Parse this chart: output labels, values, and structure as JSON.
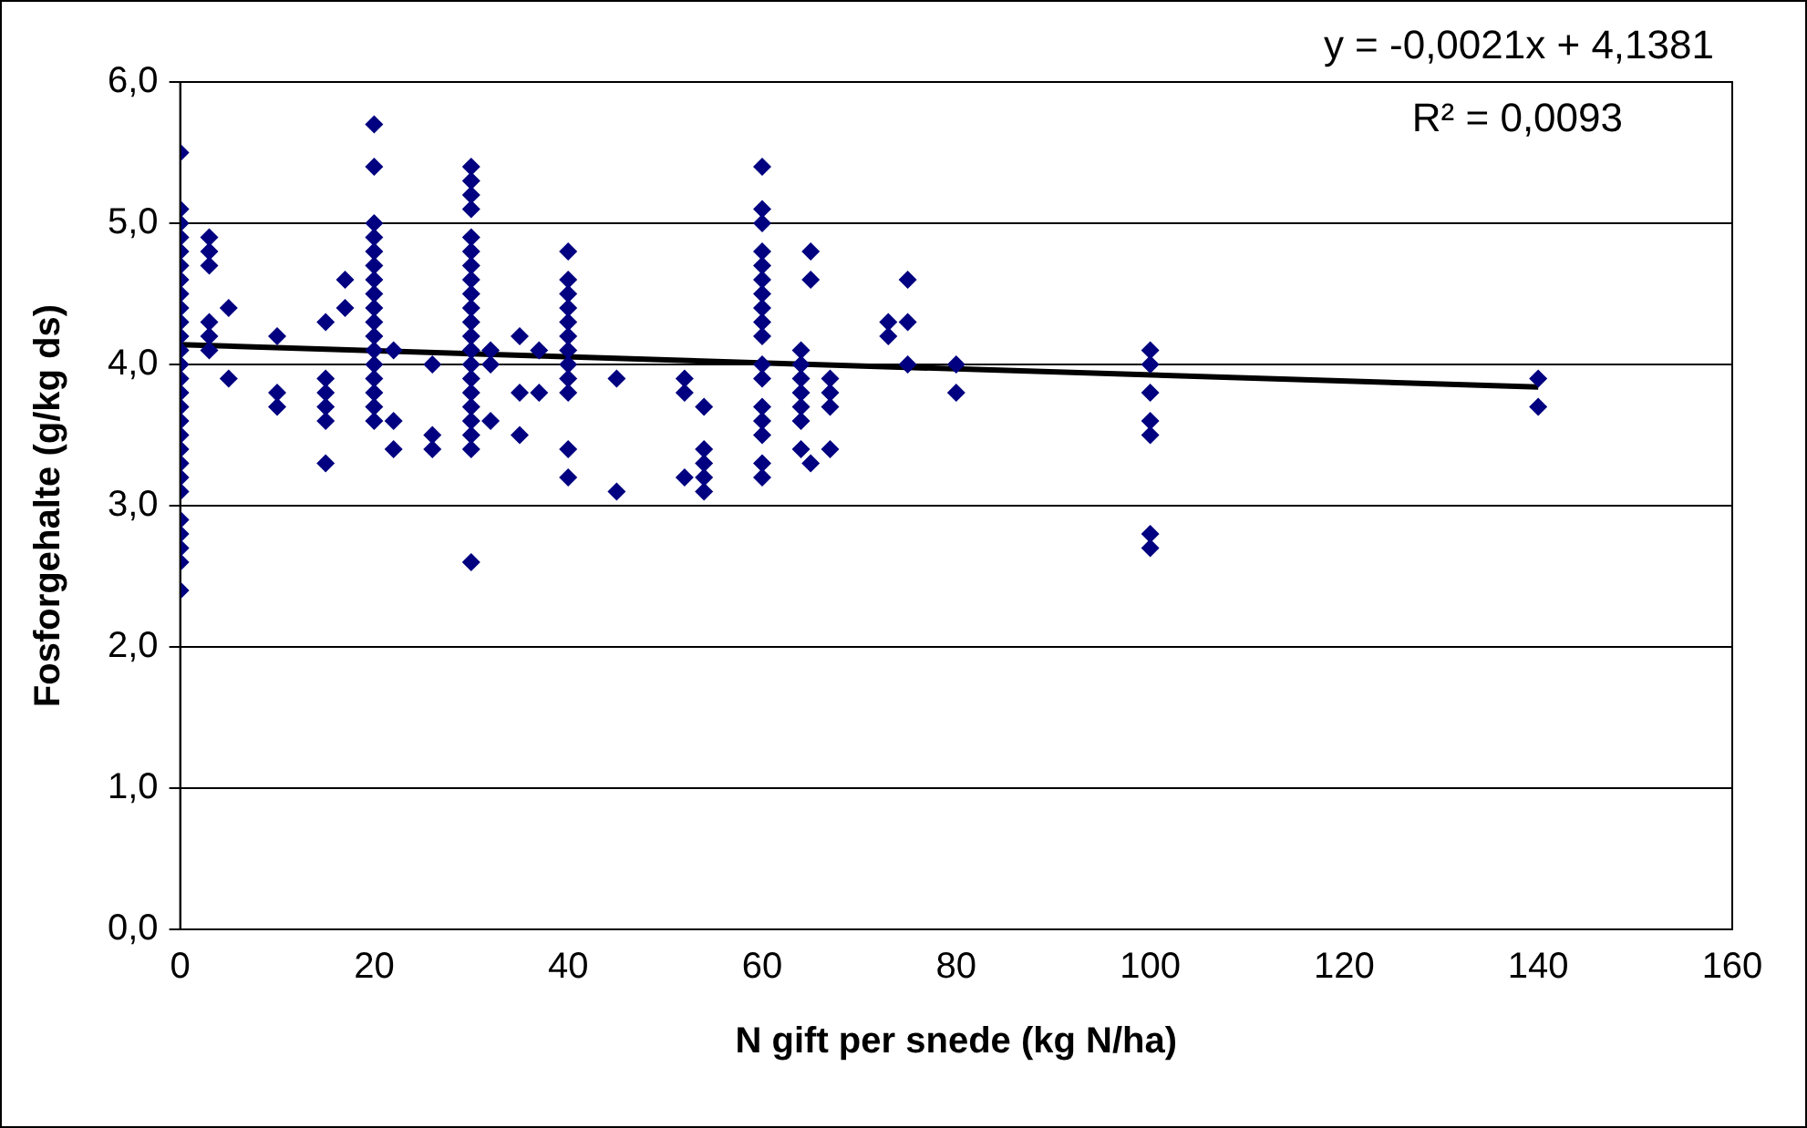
{
  "chart_data": {
    "type": "scatter",
    "xlabel": "N gift per snede (kg N/ha)",
    "ylabel": "Fosforgehalte (g/kg ds)",
    "annotations": [
      "y = -0,0021x + 4,1381",
      "R² = 0,0093"
    ],
    "xlim": [
      0,
      160
    ],
    "xticks": [
      0,
      20,
      40,
      60,
      80,
      100,
      120,
      140,
      160
    ],
    "ylim": [
      0,
      6
    ],
    "yticks": [
      {
        "value": 0,
        "label": "0,0"
      },
      {
        "value": 1,
        "label": "1,0"
      },
      {
        "value": 2,
        "label": "2,0"
      },
      {
        "value": 3,
        "label": "3,0"
      },
      {
        "value": 4,
        "label": "4,0"
      },
      {
        "value": 5,
        "label": "5,0"
      },
      {
        "value": 6,
        "label": "6,0"
      }
    ],
    "grid": "y",
    "legend": false,
    "marker": "diamond",
    "series": [
      {
        "color": "#000080",
        "x": [
          0,
          0,
          0,
          0,
          0,
          0,
          0,
          0,
          0,
          0,
          0,
          0,
          0,
          0,
          0,
          0,
          0,
          0,
          0,
          0,
          0,
          0,
          0,
          0,
          0,
          0,
          0,
          3,
          3,
          3,
          3,
          3,
          3,
          5,
          5,
          10,
          10,
          10,
          15,
          15,
          15,
          15,
          15,
          15,
          17,
          17,
          20,
          20,
          20,
          20,
          20,
          20,
          20,
          20,
          20,
          20,
          20,
          20,
          20,
          20,
          20,
          20,
          20,
          22,
          22,
          22,
          26,
          26,
          26,
          30,
          30,
          30,
          30,
          30,
          30,
          30,
          30,
          30,
          30,
          30,
          30,
          30,
          30,
          30,
          30,
          30,
          30,
          30,
          30,
          30,
          32,
          32,
          32,
          35,
          35,
          35,
          37,
          37,
          40,
          40,
          40,
          40,
          40,
          40,
          40,
          40,
          40,
          40,
          40,
          40,
          45,
          45,
          52,
          52,
          52,
          54,
          54,
          54,
          54,
          54,
          60,
          60,
          60,
          60,
          60,
          60,
          60,
          60,
          60,
          60,
          60,
          60,
          60,
          60,
          60,
          60,
          60,
          64,
          64,
          64,
          64,
          64,
          64,
          64,
          65,
          65,
          65,
          67,
          67,
          67,
          67,
          73,
          73,
          75,
          75,
          75,
          80,
          80,
          100,
          100,
          100,
          100,
          100,
          100,
          100,
          140,
          140
        ],
        "values": [
          2.4,
          2.6,
          2.7,
          2.8,
          2.9,
          3.1,
          3.2,
          3.3,
          3.4,
          3.5,
          3.6,
          3.7,
          3.8,
          3.9,
          4.0,
          4.1,
          4.2,
          4.3,
          4.4,
          4.5,
          4.6,
          4.7,
          4.8,
          4.9,
          5.0,
          5.1,
          5.5,
          4.9,
          4.8,
          4.7,
          4.3,
          4.2,
          4.1,
          4.4,
          3.9,
          4.2,
          3.8,
          3.7,
          4.3,
          3.9,
          3.8,
          3.7,
          3.6,
          3.3,
          4.6,
          4.4,
          5.7,
          5.4,
          5.0,
          4.9,
          4.8,
          4.7,
          4.6,
          4.5,
          4.4,
          4.3,
          4.2,
          4.1,
          4.0,
          3.9,
          3.8,
          3.7,
          3.6,
          4.1,
          3.6,
          3.4,
          4.0,
          3.5,
          3.4,
          5.4,
          5.3,
          5.2,
          5.1,
          4.9,
          4.8,
          4.7,
          4.6,
          4.5,
          4.4,
          4.3,
          4.2,
          4.1,
          4.0,
          3.9,
          3.8,
          3.7,
          3.6,
          3.5,
          3.4,
          2.6,
          4.1,
          4.0,
          3.6,
          4.2,
          3.8,
          3.5,
          4.1,
          3.8,
          4.8,
          4.6,
          4.5,
          4.4,
          4.3,
          4.2,
          4.1,
          4.0,
          3.9,
          3.8,
          3.4,
          3.2,
          3.9,
          3.1,
          3.9,
          3.8,
          3.2,
          3.7,
          3.4,
          3.3,
          3.2,
          3.1,
          5.4,
          5.1,
          5.0,
          4.8,
          4.7,
          4.6,
          4.5,
          4.4,
          4.3,
          4.2,
          3.9,
          3.7,
          3.6,
          3.5,
          3.3,
          3.2,
          4.0,
          4.1,
          4.0,
          3.9,
          3.8,
          3.7,
          3.6,
          3.4,
          4.8,
          4.6,
          3.3,
          3.9,
          3.8,
          3.7,
          3.4,
          4.3,
          4.2,
          4.6,
          4.3,
          4.0,
          4.0,
          3.8,
          4.1,
          4.0,
          3.8,
          3.6,
          3.5,
          2.8,
          2.7,
          3.9,
          3.7
        ]
      },
      {
        "type": "line",
        "color": "#000000",
        "marker": "none",
        "line_style": "solid",
        "x": [
          0,
          140
        ],
        "values": [
          4.14,
          3.84
        ]
      }
    ]
  }
}
